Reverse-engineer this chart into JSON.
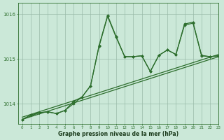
{
  "xlabel": "Graphe pression niveau de la mer (hPa)",
  "bg_color": "#cbe8d8",
  "grid_color": "#99bbaa",
  "line_color": "#2d6e2d",
  "ylim": [
    1013.55,
    1016.25
  ],
  "xlim": [
    -0.5,
    23
  ],
  "yticks": [
    1014,
    1015,
    1016
  ],
  "xticks": [
    0,
    1,
    2,
    3,
    4,
    5,
    6,
    7,
    8,
    9,
    10,
    11,
    12,
    13,
    14,
    15,
    16,
    17,
    18,
    19,
    20,
    21,
    22,
    23
  ],
  "trend1": {
    "x": [
      0,
      23
    ],
    "y": [
      1013.65,
      1015.05
    ]
  },
  "trend2": {
    "x": [
      0,
      23
    ],
    "y": [
      1013.7,
      1015.1
    ]
  },
  "jagged1": {
    "x": [
      0,
      1,
      2,
      3,
      4,
      5,
      6,
      7,
      8,
      9,
      10,
      11,
      12,
      13,
      14,
      15,
      16,
      17,
      18,
      19,
      20,
      21,
      22,
      23
    ],
    "y": [
      1013.65,
      1013.75,
      1013.8,
      1013.82,
      1013.78,
      1013.85,
      1014.05,
      1014.15,
      1014.4,
      1015.3,
      1015.97,
      1015.5,
      1015.05,
      1015.05,
      1015.07,
      1014.72,
      1015.08,
      1015.2,
      1015.1,
      1015.78,
      1015.82,
      1015.08,
      1015.05,
      1015.07
    ]
  },
  "jagged2": {
    "x": [
      0,
      2,
      3,
      4,
      5,
      6,
      7,
      8,
      9,
      10,
      11,
      12,
      13,
      14,
      15,
      16,
      17,
      18,
      19,
      20,
      21,
      22,
      23
    ],
    "y": [
      1013.65,
      1013.8,
      1013.82,
      1013.78,
      1013.85,
      1014.0,
      1014.15,
      1014.4,
      1015.28,
      1015.95,
      1015.48,
      1015.05,
      1015.05,
      1015.07,
      1014.72,
      1015.08,
      1015.2,
      1015.1,
      1015.75,
      1015.8,
      1015.07,
      1015.05,
      1015.07
    ]
  }
}
